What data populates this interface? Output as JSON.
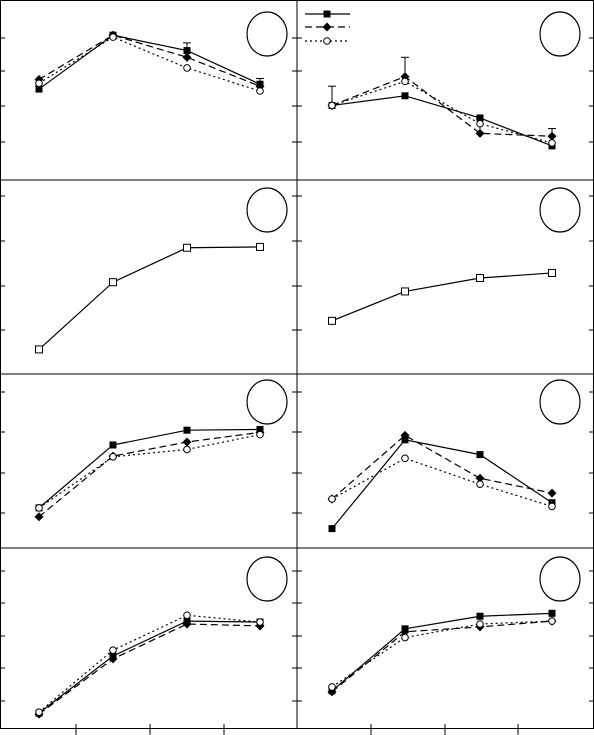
{
  "figure": {
    "panel_count": 8
  },
  "legend_marks": [
    "filled-square",
    "filled-diamond",
    "open-circle"
  ],
  "chart_data": [
    {
      "type": "line",
      "panel": "top-left",
      "x": [
        1,
        2,
        3,
        4
      ],
      "ylim": [
        0,
        160
      ],
      "grid": false,
      "legend": "none",
      "series": [
        {
          "marker": "filled-square",
          "line": "solid",
          "values": [
            82,
            138,
            122,
            87
          ],
          "errors": [
            3,
            0,
            8,
            6
          ]
        },
        {
          "marker": "filled-diamond",
          "line": "dashed",
          "values": [
            92,
            138,
            115,
            85
          ],
          "errors": [
            0,
            0,
            0,
            0
          ]
        },
        {
          "marker": "open-circle",
          "line": "dotted",
          "values": [
            88,
            136,
            104,
            80
          ],
          "errors": [
            0,
            0,
            0,
            0
          ]
        }
      ]
    },
    {
      "type": "line",
      "panel": "top-right",
      "x": [
        1,
        2,
        3,
        4
      ],
      "ylim": [
        0,
        160
      ],
      "grid": false,
      "legend": "top-left",
      "series": [
        {
          "marker": "filled-square",
          "line": "solid",
          "values": [
            65,
            75,
            52,
            23
          ],
          "errors": [
            0,
            0,
            0,
            0
          ]
        },
        {
          "marker": "filled-diamond",
          "line": "dashed",
          "values": [
            65,
            95,
            36,
            33
          ],
          "errors": [
            20,
            20,
            15,
            8
          ]
        },
        {
          "marker": "open-circle",
          "line": "dotted",
          "values": [
            65,
            90,
            46,
            26
          ],
          "errors": [
            0,
            0,
            0,
            0
          ]
        }
      ]
    },
    {
      "type": "line",
      "panel": "second-left",
      "x": [
        1,
        2,
        3,
        4
      ],
      "ylim": [
        0,
        200
      ],
      "grid": false,
      "legend": "none",
      "series": [
        {
          "marker": "open-square",
          "line": "solid",
          "values": [
            15,
            95,
            136,
            137
          ],
          "errors": [
            0,
            0,
            0,
            0
          ]
        }
      ]
    },
    {
      "type": "line",
      "panel": "second-right",
      "x": [
        1,
        2,
        3,
        4
      ],
      "ylim": [
        0,
        200
      ],
      "grid": false,
      "legend": "none",
      "series": [
        {
          "marker": "open-square",
          "line": "solid",
          "values": [
            49,
            84,
            100,
            106
          ],
          "errors": [
            0,
            0,
            0,
            0
          ]
        }
      ]
    },
    {
      "type": "line",
      "panel": "third-left",
      "x": [
        1,
        2,
        3,
        4
      ],
      "ylim": [
        0,
        200
      ],
      "grid": false,
      "legend": "none",
      "series": [
        {
          "marker": "filled-square",
          "line": "solid",
          "values": [
            38,
            123,
            143,
            144
          ],
          "errors": [
            0,
            0,
            0,
            0
          ]
        },
        {
          "marker": "filled-diamond",
          "line": "dashed",
          "values": [
            26,
            108,
            127,
            140
          ],
          "errors": [
            0,
            0,
            0,
            0
          ]
        },
        {
          "marker": "open-circle",
          "line": "dotted",
          "values": [
            38,
            107,
            117,
            137
          ],
          "errors": [
            0,
            0,
            0,
            0
          ]
        }
      ]
    },
    {
      "type": "line",
      "panel": "third-right",
      "x": [
        1,
        2,
        3,
        4
      ],
      "ylim": [
        0,
        200
      ],
      "grid": false,
      "legend": "none",
      "series": [
        {
          "marker": "filled-square",
          "line": "solid",
          "values": [
            10,
            130,
            110,
            45
          ],
          "errors": [
            0,
            0,
            0,
            0
          ]
        },
        {
          "marker": "filled-diamond",
          "line": "dashed",
          "values": [
            50,
            136,
            78,
            58
          ],
          "errors": [
            0,
            0,
            0,
            0
          ]
        },
        {
          "marker": "open-circle",
          "line": "dotted",
          "values": [
            50,
            105,
            70,
            40
          ],
          "errors": [
            0,
            0,
            0,
            0
          ]
        }
      ]
    },
    {
      "type": "line",
      "panel": "bottom-left",
      "x": [
        1,
        2,
        3,
        4
      ],
      "ylim": [
        0,
        160
      ],
      "grid": false,
      "legend": "none",
      "series": [
        {
          "marker": "filled-square",
          "line": "solid",
          "values": [
            4,
            63,
            99,
            98
          ],
          "errors": [
            0,
            0,
            0,
            0
          ]
        },
        {
          "marker": "filled-diamond",
          "line": "dashed",
          "values": [
            3,
            60,
            96,
            94
          ],
          "errors": [
            0,
            0,
            0,
            0
          ]
        },
        {
          "marker": "open-circle",
          "line": "dotted",
          "values": [
            5,
            69,
            105,
            98
          ],
          "errors": [
            0,
            0,
            0,
            0
          ]
        }
      ]
    },
    {
      "type": "line",
      "panel": "bottom-right",
      "x": [
        1,
        2,
        3,
        4
      ],
      "ylim": [
        0,
        160
      ],
      "grid": false,
      "legend": "none",
      "series": [
        {
          "marker": "filled-square",
          "line": "solid",
          "values": [
            27,
            91,
            104,
            107
          ],
          "errors": [
            0,
            0,
            0,
            0
          ]
        },
        {
          "marker": "filled-diamond",
          "line": "dashed",
          "values": [
            26,
            88,
            93,
            99
          ],
          "errors": [
            0,
            0,
            0,
            0
          ]
        },
        {
          "marker": "open-circle",
          "line": "dotted",
          "values": [
            31,
            82,
            96,
            99
          ],
          "errors": [
            0,
            0,
            0,
            0
          ]
        }
      ]
    }
  ]
}
